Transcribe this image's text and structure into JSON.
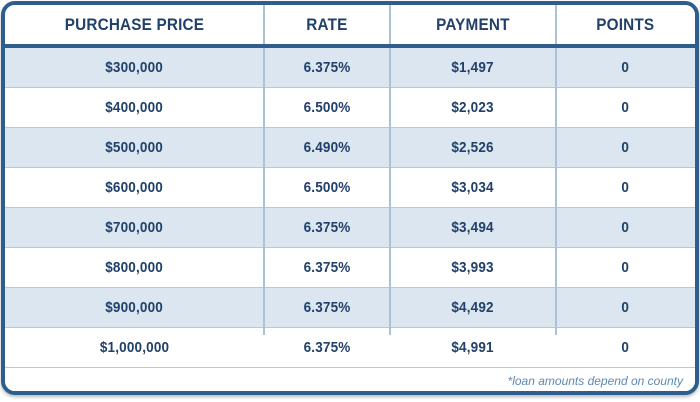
{
  "chart_data": {
    "type": "table",
    "columns": [
      "PURCHASE PRICE",
      "RATE",
      "PAYMENT",
      "POINTS"
    ],
    "rows": [
      {
        "purchase_price": "$300,000",
        "rate": "6.375%",
        "payment": "$1,497",
        "points": "0"
      },
      {
        "purchase_price": "$400,000",
        "rate": "6.500%",
        "payment": "$2,023",
        "points": "0"
      },
      {
        "purchase_price": "$500,000",
        "rate": "6.490%",
        "payment": "$2,526",
        "points": "0"
      },
      {
        "purchase_price": "$600,000",
        "rate": "6.500%",
        "payment": "$3,034",
        "points": "0"
      },
      {
        "purchase_price": "$700,000",
        "rate": "6.375%",
        "payment": "$3,494",
        "points": "0"
      },
      {
        "purchase_price": "$800,000",
        "rate": "6.375%",
        "payment": "$3,993",
        "points": "0"
      },
      {
        "purchase_price": "$900,000",
        "rate": "6.375%",
        "payment": "$4,492",
        "points": "0"
      },
      {
        "purchase_price": "$1,000,000",
        "rate": "6.375%",
        "payment": "$4,991",
        "points": "0"
      }
    ],
    "footnote": "*loan amounts depend on county",
    "layout": {
      "alternating_rows": true,
      "first_row_shaded": true
    }
  },
  "colors": {
    "border_navy": "#2e5e8d",
    "text_navy": "#21406a",
    "row_alt_background": "#dbe6f1",
    "column_divider": "#a9c2d8",
    "row_divider": "#b5c9dc",
    "footnote_blue": "#5d89b4",
    "background": "#ffffff"
  }
}
